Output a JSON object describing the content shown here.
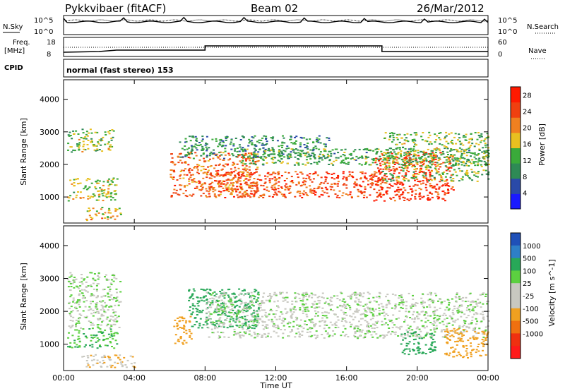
{
  "header": {
    "station": "Pykkvibaer (fitACF)",
    "beam": "Beam 02",
    "date": "26/Mar/2012"
  },
  "status": {
    "nsky_label": "N.Sky",
    "nsearch_label": "N.Search",
    "freq_label_line1": "Freq.",
    "freq_label_line2": "[MHz]",
    "nave_label": "Nave",
    "cpid_label": "CPID",
    "cpid_text": "normal (fast stereo) 153",
    "noise_ticks": [
      "10^5",
      "10^0"
    ],
    "freq_ticks": [
      "18",
      "8"
    ],
    "nave_ticks": [
      "60",
      "0"
    ]
  },
  "colors": {
    "power_scale": [
      "#1a1aff",
      "#2a4aa8",
      "#2e8a55",
      "#3aaa3a",
      "#e8c020",
      "#f08020",
      "#f04010",
      "#ff1a00"
    ],
    "velocity_scale": [
      "#1f50b8",
      "#2e7fc8",
      "#28a858",
      "#5cd040",
      "#c8c8c0",
      "#c8c8c0",
      "#f0a020",
      "#f07010",
      "#f03010",
      "#ff1a1a"
    ],
    "gray_scatter": "#c8c8c0"
  },
  "chart_data": [
    {
      "type": "heatmap",
      "title": "",
      "xlabel": "Time UT",
      "ylabel": "Slant Range [km]",
      "x_ticks": [
        "00:00",
        "04:00",
        "08:00",
        "12:00",
        "16:00",
        "20:00",
        "00:00"
      ],
      "xlim_hours": [
        0,
        24
      ],
      "ylim": [
        200,
        4600
      ],
      "y_ticks": [
        1000,
        2000,
        3000,
        4000
      ],
      "colorbar": {
        "label": "Power [dB]",
        "ticks": [
          4,
          8,
          12,
          16,
          20,
          24,
          28
        ],
        "range": [
          0,
          30
        ]
      },
      "regions": [
        {
          "t": [
            0.2,
            2.8
          ],
          "r": [
            2400,
            3100
          ],
          "level": 14
        },
        {
          "t": [
            0.2,
            3.0
          ],
          "r": [
            900,
            1600
          ],
          "level": 16
        },
        {
          "t": [
            1.2,
            3.2
          ],
          "r": [
            300,
            700
          ],
          "level": 18
        },
        {
          "t": [
            6.0,
            11.0
          ],
          "r": [
            1000,
            2400
          ],
          "level": 22
        },
        {
          "t": [
            6.5,
            15.0
          ],
          "r": [
            2200,
            2900
          ],
          "level": 10
        },
        {
          "t": [
            8.0,
            18.0
          ],
          "r": [
            1000,
            1800
          ],
          "level": 24
        },
        {
          "t": [
            10.0,
            24.0
          ],
          "r": [
            2000,
            2500
          ],
          "level": 12
        },
        {
          "t": [
            17.5,
            22.0
          ],
          "r": [
            900,
            2400
          ],
          "level": 26
        },
        {
          "t": [
            18.0,
            24.0
          ],
          "r": [
            1500,
            3000
          ],
          "level": 14
        }
      ]
    },
    {
      "type": "heatmap",
      "title": "",
      "xlabel": "Time UT",
      "ylabel": "Slant Range [km]",
      "x_ticks": [
        "00:00",
        "04:00",
        "08:00",
        "12:00",
        "16:00",
        "20:00",
        "00:00"
      ],
      "xlim_hours": [
        0,
        24
      ],
      "ylim": [
        200,
        4600
      ],
      "y_ticks": [
        1000,
        2000,
        3000,
        4000
      ],
      "colorbar": {
        "label": "Velocity [m s^-1]",
        "ticks": [
          1000,
          500,
          100,
          25,
          -25,
          -100,
          -500,
          -1000
        ]
      },
      "regions": [
        {
          "t": [
            0.2,
            3.2
          ],
          "r": [
            1500,
            3200
          ],
          "level": 25
        },
        {
          "t": [
            0.2,
            3.0
          ],
          "r": [
            900,
            1500
          ],
          "level": 100
        },
        {
          "t": [
            1.0,
            4.0
          ],
          "r": [
            300,
            700
          ],
          "level": -100
        },
        {
          "t": [
            6.2,
            7.2
          ],
          "r": [
            1000,
            1900
          ],
          "level": -300
        },
        {
          "t": [
            7.0,
            11.0
          ],
          "r": [
            1500,
            2700
          ],
          "level": 400
        },
        {
          "t": [
            8.0,
            24.0
          ],
          "r": [
            1200,
            2600
          ],
          "level": 0
        },
        {
          "t": [
            19.0,
            21.0
          ],
          "r": [
            700,
            1400
          ],
          "level": 200
        },
        {
          "t": [
            21.5,
            24.0
          ],
          "r": [
            600,
            1500
          ],
          "level": -200
        }
      ]
    }
  ]
}
